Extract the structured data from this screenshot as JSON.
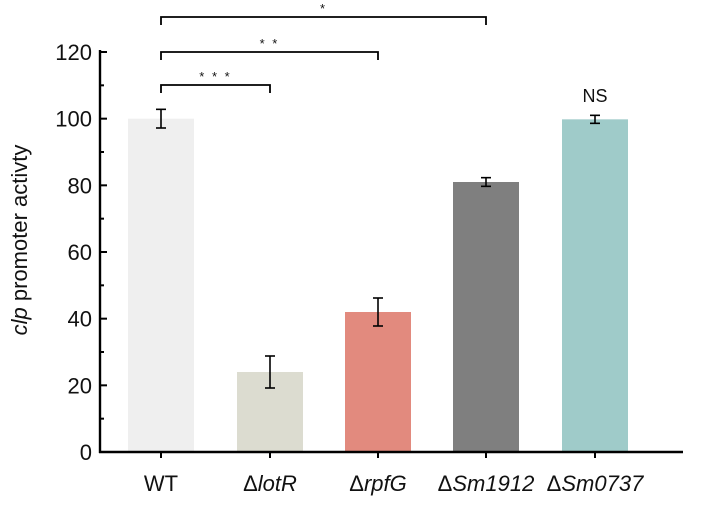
{
  "chart_data": {
    "type": "bar",
    "categories": [
      "WT",
      "lotR",
      "rpfG",
      "Sm1912",
      "Sm0737"
    ],
    "category_prefix": "Δ",
    "category_prefix_flags": [
      false,
      true,
      true,
      true,
      true
    ],
    "values": [
      100,
      24,
      42,
      81,
      99.8
    ],
    "errors": [
      2.8,
      4.8,
      4.2,
      1.3,
      1.2
    ],
    "colors": [
      "#efefef",
      "#dcdcd0",
      "#e28a7e",
      "#7f7f7f",
      "#9fcbc9"
    ],
    "ylabel_italic": "clp",
    "ylabel_rest": " promoter activty",
    "ylim": [
      0,
      120
    ],
    "yticks": [
      0,
      20,
      40,
      60,
      80,
      100,
      120
    ],
    "grid": false,
    "legend": "none",
    "significance": [
      {
        "from": "WT",
        "to": "lotR",
        "label": "* * *"
      },
      {
        "from": "WT",
        "to": "rpfG",
        "label": "* *"
      },
      {
        "from": "WT",
        "to": "Sm1912",
        "label": "*"
      }
    ],
    "annotations": [
      {
        "category": "Sm0737",
        "label": "NS"
      }
    ]
  }
}
